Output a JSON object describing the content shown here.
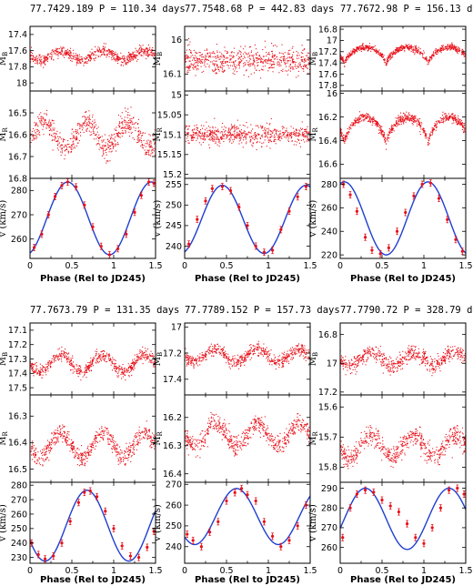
{
  "colors": {
    "photometry": "#e8111a",
    "fit_curve": "#1f3fd0",
    "rv_point": "#e8111a",
    "axis": "#000000"
  },
  "chart_data": [
    {
      "title": "77.7429.189  P = 110.34 days",
      "xlabel": "Phase (Rel to JD245)",
      "xlim": [
        0,
        1.5
      ],
      "xticks": [
        "0",
        "0.5",
        "1",
        "1.5"
      ],
      "panels": [
        {
          "kind": "mag",
          "ylabel": "M",
          "ysub": "B",
          "ylim": [
            18.1,
            17.3
          ],
          "yticks": [
            17.4,
            17.6,
            17.8,
            18
          ],
          "ytick_labels": [
            "17.4",
            "17.6",
            "17.8",
            "18"
          ],
          "type": "scatter",
          "series": [
            {
              "shape": "sine",
              "mean": 17.66,
              "amp": 0.055,
              "phase0": 0.62,
              "periods": 2,
              "scatter": 0.06,
              "n": 650
            }
          ]
        },
        {
          "kind": "mag",
          "ylabel": "M",
          "ysub": "R",
          "ylim": [
            16.8,
            16.4
          ],
          "yticks": [
            16.5,
            16.6,
            16.7,
            16.8
          ],
          "ytick_labels": [
            "16.5",
            "16.6",
            "16.7",
            "16.8"
          ],
          "type": "scatter",
          "series": [
            {
              "shape": "sine",
              "mean": 16.6,
              "amp": 0.06,
              "phase0": 0.42,
              "periods": 2,
              "scatter": 0.05,
              "n": 650
            }
          ]
        },
        {
          "kind": "rv",
          "ylabel": "v (km/s)",
          "ylim": [
            252,
            285
          ],
          "yticks": [
            260,
            270,
            280
          ],
          "ytick_labels": [
            "260",
            "270",
            "280"
          ],
          "type": "line",
          "fit": {
            "mean": 268.5,
            "amp": 15,
            "phase0": 0.45,
            "periods": 1
          },
          "points": [
            [
              0.05,
              256.5
            ],
            [
              0.14,
              262
            ],
            [
              0.22,
              270
            ],
            [
              0.3,
              277.5
            ],
            [
              0.38,
              282
            ],
            [
              0.45,
              283.5
            ],
            [
              0.55,
              281.5
            ],
            [
              0.65,
              274
            ],
            [
              0.75,
              265
            ],
            [
              0.85,
              257
            ],
            [
              0.95,
              253.5
            ],
            [
              1.05,
              256
            ],
            [
              1.15,
              262
            ],
            [
              1.25,
              271
            ],
            [
              1.33,
              278
            ],
            [
              1.42,
              283.5
            ],
            [
              1.48,
              283
            ]
          ]
        }
      ]
    },
    {
      "title": "77.7548.68  P = 442.83 days",
      "xlabel": "Phase (Rel to JD245)",
      "xlim": [
        0,
        1.5
      ],
      "xticks": [
        "0",
        "0.5",
        "1",
        "1.5"
      ],
      "panels": [
        {
          "kind": "mag",
          "ylabel": "M",
          "ysub": "B",
          "ylim": [
            16.15,
            15.96
          ],
          "yticks": [
            16,
            16.1
          ],
          "ytick_labels": [
            "16",
            "16.1"
          ],
          "type": "scatter",
          "series": [
            {
              "shape": "flat",
              "mean": 16.06,
              "amp": 0.0,
              "phase0": 0.0,
              "periods": 1,
              "scatter": 0.035,
              "n": 650
            }
          ]
        },
        {
          "kind": "mag",
          "ylabel": "M",
          "ysub": "R",
          "ylim": [
            15.21,
            14.99
          ],
          "yticks": [
            15,
            15.05,
            15.1,
            15.15,
            15.2
          ],
          "ytick_labels": [
            "15",
            "15.05",
            "15.1",
            "15.15",
            "15.2"
          ],
          "type": "scatter",
          "series": [
            {
              "shape": "flat",
              "mean": 15.1,
              "amp": 0.0,
              "phase0": 0.0,
              "periods": 1,
              "scatter": 0.022,
              "n": 650
            }
          ]
        },
        {
          "kind": "rv",
          "ylabel": "v (km/s)",
          "ylim": [
            237,
            256.5
          ],
          "yticks": [
            240,
            245,
            250,
            255
          ],
          "ytick_labels": [
            "240",
            "245",
            "250",
            "255"
          ],
          "type": "line",
          "fit": {
            "mean": 246.5,
            "amp": 8.3,
            "phase0": 0.45,
            "periods": 1
          },
          "points": [
            [
              0.05,
              240.5
            ],
            [
              0.15,
              246.5
            ],
            [
              0.25,
              251
            ],
            [
              0.33,
              254
            ],
            [
              0.45,
              254.5
            ],
            [
              0.55,
              253.5
            ],
            [
              0.65,
              249.5
            ],
            [
              0.75,
              245
            ],
            [
              0.85,
              240
            ],
            [
              0.95,
              238.5
            ],
            [
              1.05,
              239
            ],
            [
              1.15,
              244
            ],
            [
              1.25,
              248.5
            ],
            [
              1.35,
              252
            ],
            [
              1.45,
              254.5
            ]
          ]
        }
      ]
    },
    {
      "title": "77.7672.98  P = 156.13 days",
      "xlabel": "Phase (Rel to JD245)",
      "xlim": [
        0,
        1.5
      ],
      "xticks": [
        "0",
        "0.5",
        "1",
        "1.5"
      ],
      "panels": [
        {
          "kind": "mag",
          "ylabel": "M",
          "ysub": "B",
          "ylim": [
            17.9,
            16.75
          ],
          "yticks": [
            16.8,
            17,
            17.2,
            17.4,
            17.6,
            17.8
          ],
          "ytick_labels": [
            "16.8",
            "17",
            "17.2",
            "17.4",
            "17.6",
            "17.8"
          ],
          "type": "scatter",
          "series": [
            {
              "shape": "double",
              "mean": 17.25,
              "amp": 0.32,
              "phase0": 0.3,
              "periods": 2,
              "scatter": 0.05,
              "n": 750
            }
          ]
        },
        {
          "kind": "mag",
          "ylabel": "M",
          "ysub": "R",
          "ylim": [
            16.72,
            15.98
          ],
          "yticks": [
            16,
            16.2,
            16.4,
            16.6
          ],
          "ytick_labels": [
            "16",
            "16.2",
            "16.4",
            "16.6"
          ],
          "type": "scatter",
          "series": [
            {
              "shape": "double",
              "mean": 16.3,
              "amp": 0.24,
              "phase0": 0.3,
              "periods": 2,
              "scatter": 0.035,
              "n": 750
            }
          ]
        },
        {
          "kind": "rv",
          "ylabel": "v (km/s)",
          "ylim": [
            217,
            285
          ],
          "yticks": [
            220,
            240,
            260,
            280
          ],
          "ytick_labels": [
            "220",
            "240",
            "260",
            "280"
          ],
          "type": "line",
          "fit": {
            "mean": 251,
            "amp": 31,
            "phase0": 0.05,
            "periods": 1
          },
          "points": [
            [
              0.04,
              280
            ],
            [
              0.12,
              271
            ],
            [
              0.2,
              257
            ],
            [
              0.3,
              235
            ],
            [
              0.38,
              224
            ],
            [
              0.48,
              221
            ],
            [
              0.58,
              226
            ],
            [
              0.68,
              240
            ],
            [
              0.78,
              256
            ],
            [
              0.88,
              270
            ],
            [
              0.98,
              280
            ],
            [
              1.08,
              281
            ],
            [
              1.18,
              268
            ],
            [
              1.28,
              250
            ],
            [
              1.38,
              233
            ],
            [
              1.46,
              223
            ]
          ]
        }
      ]
    },
    {
      "title": "77.7673.79  P = 131.35 days",
      "xlabel": "Phase (Rel to JD245)",
      "xlim": [
        0,
        1.5
      ],
      "xticks": [
        "0",
        "0.5",
        "1",
        "1.5"
      ],
      "panels": [
        {
          "kind": "mag",
          "ylabel": "M",
          "ysub": "B",
          "ylim": [
            17.55,
            17.05
          ],
          "yticks": [
            17.1,
            17.2,
            17.3,
            17.4,
            17.5
          ],
          "ytick_labels": [
            "17.1",
            "17.2",
            "17.3",
            "17.4",
            "17.5"
          ],
          "type": "scatter",
          "series": [
            {
              "shape": "sine",
              "mean": 17.33,
              "amp": 0.06,
              "phase0": 0.62,
              "periods": 2,
              "scatter": 0.04,
              "n": 650
            }
          ]
        },
        {
          "kind": "mag",
          "ylabel": "M",
          "ysub": "R",
          "ylim": [
            16.55,
            16.22
          ],
          "yticks": [
            16.3,
            16.4,
            16.5
          ],
          "ytick_labels": [
            "16.3",
            "16.4",
            "16.5"
          ],
          "type": "scatter",
          "series": [
            {
              "shape": "sine",
              "mean": 16.41,
              "amp": 0.045,
              "phase0": 0.62,
              "periods": 2,
              "scatter": 0.03,
              "n": 650
            }
          ]
        },
        {
          "kind": "rv",
          "ylabel": "v (km/s)",
          "ylim": [
            226,
            282
          ],
          "yticks": [
            230,
            240,
            250,
            260,
            270,
            280
          ],
          "ytick_labels": [
            "230",
            "240",
            "250",
            "260",
            "270",
            "280"
          ],
          "type": "line",
          "fit": {
            "mean": 252,
            "amp": 24.5,
            "phase0": 0.68,
            "periods": 1
          },
          "points": [
            [
              0.02,
              240
            ],
            [
              0.1,
              232
            ],
            [
              0.18,
              229
            ],
            [
              0.28,
              231
            ],
            [
              0.38,
              240
            ],
            [
              0.48,
              255
            ],
            [
              0.58,
              268
            ],
            [
              0.65,
              275
            ],
            [
              0.72,
              276
            ],
            [
              0.8,
              272
            ],
            [
              0.9,
              262
            ],
            [
              1.0,
              250
            ],
            [
              1.1,
              238
            ],
            [
              1.2,
              231
            ],
            [
              1.3,
              230
            ],
            [
              1.4,
              237
            ],
            [
              1.48,
              248
            ]
          ]
        }
      ]
    },
    {
      "title": "77.7789.152  P = 157.73 days",
      "xlabel": "Phase (Rel to JD245)",
      "xlim": [
        0,
        1.5
      ],
      "xticks": [
        "0",
        "0.5",
        "1",
        "1.5"
      ],
      "panels": [
        {
          "kind": "mag",
          "ylabel": "M",
          "ysub": "B",
          "ylim": [
            17.52,
            16.97
          ],
          "yticks": [
            17,
            17.2,
            17.4
          ],
          "ytick_labels": [
            "17",
            "17.2",
            "17.4"
          ],
          "type": "scatter",
          "series": [
            {
              "shape": "sine",
              "mean": 17.22,
              "amp": 0.05,
              "phase0": 0.62,
              "periods": 2,
              "scatter": 0.045,
              "n": 650
            }
          ]
        },
        {
          "kind": "mag",
          "ylabel": "M",
          "ysub": "R",
          "ylim": [
            16.43,
            16.12
          ],
          "yticks": [
            16.2,
            16.3,
            16.4
          ],
          "ytick_labels": [
            "16.2",
            "16.3",
            "16.4"
          ],
          "type": "scatter",
          "series": [
            {
              "shape": "sine",
              "mean": 16.26,
              "amp": 0.04,
              "phase0": 0.62,
              "periods": 2,
              "scatter": 0.03,
              "n": 650
            }
          ]
        },
        {
          "kind": "rv",
          "ylabel": "v (km/s)",
          "ylim": [
            232,
            271
          ],
          "yticks": [
            240,
            250,
            260,
            270
          ],
          "ytick_labels": [
            "240",
            "250",
            "260",
            "270"
          ],
          "type": "line",
          "fit": {
            "mean": 254.5,
            "amp": 13.5,
            "phase0": 0.62,
            "periods": 1
          },
          "points": [
            [
              0.03,
              246
            ],
            [
              0.1,
              243
            ],
            [
              0.2,
              240
            ],
            [
              0.3,
              247
            ],
            [
              0.4,
              252
            ],
            [
              0.5,
              262
            ],
            [
              0.6,
              266
            ],
            [
              0.68,
              268
            ],
            [
              0.75,
              265
            ],
            [
              0.85,
              262
            ],
            [
              0.95,
              252
            ],
            [
              1.05,
              245
            ],
            [
              1.15,
              240
            ],
            [
              1.25,
              243
            ],
            [
              1.35,
              250
            ],
            [
              1.45,
              260
            ]
          ]
        }
      ]
    },
    {
      "title": "77.7790.72  P = 328.79 days",
      "xlabel": "Phase (Rel to JD245)",
      "xlim": [
        0,
        1.5
      ],
      "xticks": [
        "0",
        "0.5",
        "1",
        "1.5"
      ],
      "panels": [
        {
          "kind": "mag",
          "ylabel": "M",
          "ysub": "B",
          "ylim": [
            17.22,
            16.72
          ],
          "yticks": [
            16.8,
            17,
            17.2
          ],
          "ytick_labels": [
            "16.8",
            "17",
            "17.2"
          ],
          "type": "scatter",
          "series": [
            {
              "shape": "sine",
              "mean": 16.97,
              "amp": 0.045,
              "phase0": 0.62,
              "periods": 2,
              "scatter": 0.05,
              "n": 650
            }
          ]
        },
        {
          "kind": "mag",
          "ylabel": "M",
          "ysub": "R",
          "ylim": [
            15.85,
            15.56
          ],
          "yticks": [
            15.6,
            15.7,
            15.8
          ],
          "ytick_labels": [
            "15.6",
            "15.7",
            "15.8"
          ],
          "type": "scatter",
          "series": [
            {
              "shape": "sine",
              "mean": 15.73,
              "amp": 0.035,
              "phase0": 0.62,
              "periods": 2,
              "scatter": 0.03,
              "n": 650
            }
          ]
        },
        {
          "kind": "rv",
          "ylabel": "v (km/s)",
          "ylim": [
            252,
            293
          ],
          "yticks": [
            260,
            270,
            280,
            290
          ],
          "ytick_labels": [
            "260",
            "270",
            "280",
            "290"
          ],
          "type": "line",
          "fit": {
            "mean": 274.5,
            "amp": 15.5,
            "phase0": 0.3,
            "periods": 1
          },
          "points": [
            [
              0.03,
              265
            ],
            [
              0.12,
              280
            ],
            [
              0.2,
              287
            ],
            [
              0.3,
              289
            ],
            [
              0.4,
              288
            ],
            [
              0.5,
              284
            ],
            [
              0.6,
              281
            ],
            [
              0.7,
              278
            ],
            [
              0.8,
              272
            ],
            [
              0.9,
              265
            ],
            [
              1.0,
              262
            ],
            [
              1.1,
              270
            ],
            [
              1.2,
              280
            ],
            [
              1.3,
              289
            ],
            [
              1.4,
              290
            ],
            [
              1.48,
              287
            ]
          ]
        }
      ]
    }
  ]
}
